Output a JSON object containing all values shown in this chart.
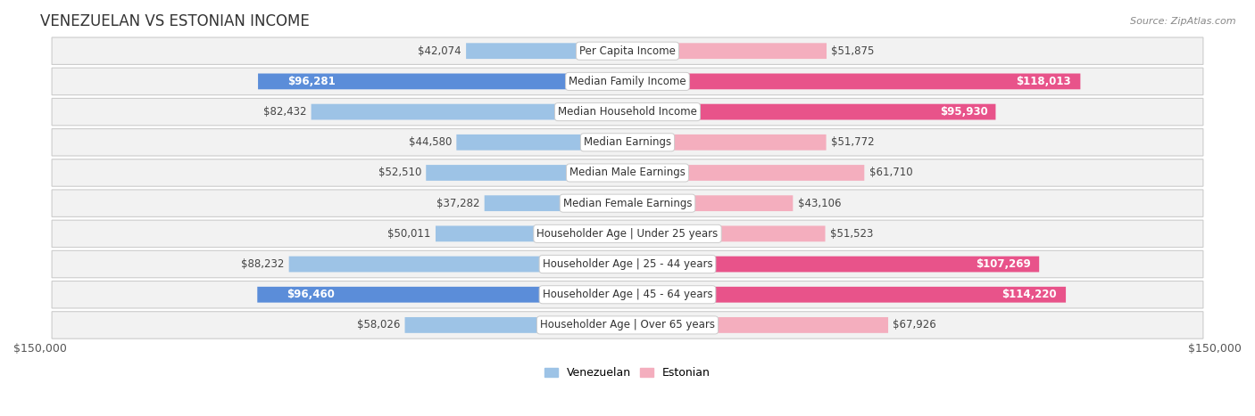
{
  "title": "VENEZUELAN VS ESTONIAN INCOME",
  "source": "Source: ZipAtlas.com",
  "categories": [
    "Per Capita Income",
    "Median Family Income",
    "Median Household Income",
    "Median Earnings",
    "Median Male Earnings",
    "Median Female Earnings",
    "Householder Age | Under 25 years",
    "Householder Age | 25 - 44 years",
    "Householder Age | 45 - 64 years",
    "Householder Age | Over 65 years"
  ],
  "venezuelan": [
    42074,
    96281,
    82432,
    44580,
    52510,
    37282,
    50011,
    88232,
    96460,
    58026
  ],
  "estonian": [
    51875,
    118013,
    95930,
    51772,
    61710,
    43106,
    51523,
    107269,
    114220,
    67926
  ],
  "venezuelan_labels": [
    "$42,074",
    "$96,281",
    "$82,432",
    "$44,580",
    "$52,510",
    "$37,282",
    "$50,011",
    "$88,232",
    "$96,460",
    "$58,026"
  ],
  "estonian_labels": [
    "$51,875",
    "$118,013",
    "$95,930",
    "$51,772",
    "$61,710",
    "$43,106",
    "$51,523",
    "$107,269",
    "$114,220",
    "$67,926"
  ],
  "venezuelan_big": [
    false,
    true,
    false,
    false,
    false,
    false,
    false,
    false,
    true,
    false
  ],
  "estonian_big": [
    false,
    true,
    true,
    false,
    false,
    false,
    false,
    true,
    true,
    false
  ],
  "max_value": 150000,
  "venezuelan_color_normal": "#9DC3E6",
  "estonian_color_normal": "#F4AEBE",
  "venezuelan_color_highlight": "#5B8DD9",
  "estonian_color_highlight": "#E8538A",
  "row_bg_color": "#F2F2F2",
  "row_border_color": "#CCCCCC",
  "title_fontsize": 12,
  "label_fontsize": 8.5,
  "category_fontsize": 8.5,
  "axis_label_fontsize": 9,
  "bar_height": 0.52,
  "legend_label_venezuelan": "Venezuelan",
  "legend_label_estonian": "Estonian"
}
